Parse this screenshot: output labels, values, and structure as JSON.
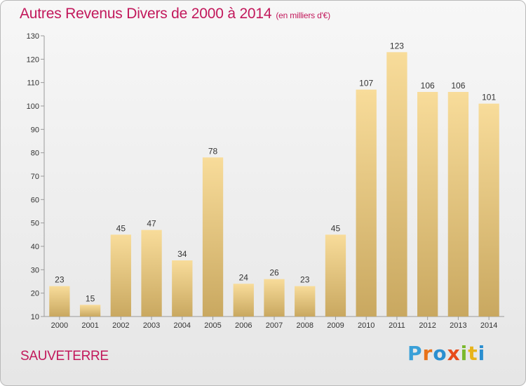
{
  "title": "Autres Revenus Divers de 2000 à 2014",
  "title_unit": "(en milliers d'€)",
  "place": "SAUVETERRE",
  "logo": {
    "text": "Proxiti",
    "colors": [
      "#3aa0d8",
      "#e8731a",
      "#2b8fd0",
      "#e84a1a",
      "#7ab82c",
      "#e8b41a",
      "#2b8fd0"
    ]
  },
  "chart_data": {
    "type": "bar",
    "categories": [
      "2000",
      "2001",
      "2002",
      "2003",
      "2004",
      "2005",
      "2006",
      "2007",
      "2008",
      "2009",
      "2010",
      "2011",
      "2012",
      "2013",
      "2014"
    ],
    "values": [
      23,
      15,
      45,
      47,
      34,
      78,
      24,
      26,
      23,
      45,
      107,
      123,
      106,
      106,
      101
    ],
    "ylim": [
      10,
      130
    ],
    "yticks": [
      10,
      20,
      30,
      40,
      50,
      60,
      70,
      80,
      90,
      100,
      110,
      120,
      130
    ],
    "grid": false,
    "bar_color_light": "#f8dc9a",
    "bar_color_dark": "#c9a860"
  }
}
